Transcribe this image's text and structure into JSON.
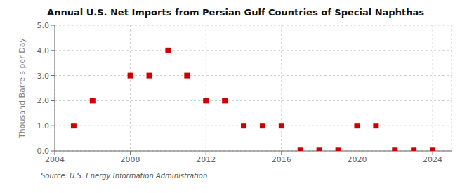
{
  "chart_data": {
    "type": "scatter",
    "title": "Annual U.S. Net Imports from Persian Gulf Countries of Special Naphthas",
    "ylabel": "Thousand Barrels per Day",
    "source": "Source: U.S. Energy Information Administration",
    "x": [
      2005,
      2006,
      2008,
      2009,
      2010,
      2011,
      2012,
      2013,
      2014,
      2015,
      2016,
      2017,
      2018,
      2019,
      2020,
      2021,
      2022,
      2023,
      2024
    ],
    "values": [
      1.0,
      2.0,
      3.0,
      3.0,
      4.0,
      3.0,
      2.0,
      2.0,
      1.0,
      1.0,
      1.0,
      0.02,
      0.02,
      0.02,
      1.0,
      1.0,
      0.02,
      0.02,
      0.02
    ],
    "color": "#cc0000",
    "marker": "square",
    "xlim": [
      2004,
      2025
    ],
    "xticks": [
      2004,
      2008,
      2012,
      2016,
      2020,
      2024
    ],
    "ylim": [
      0.0,
      5.0
    ],
    "yticks": [
      {
        "value": 0.0,
        "label": "0.0"
      },
      {
        "value": 1.0,
        "label": "1.0"
      },
      {
        "value": 2.0,
        "label": "2.0"
      },
      {
        "value": 3.0,
        "label": "3.0"
      },
      {
        "value": 4.0,
        "label": "4.0"
      },
      {
        "value": 5.0,
        "label": "5.0"
      }
    ],
    "grid": true
  }
}
